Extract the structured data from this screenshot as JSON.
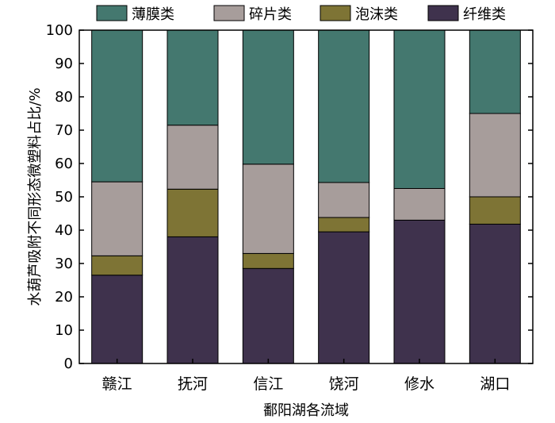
{
  "chart_data": {
    "type": "bar",
    "stacked": true,
    "categories": [
      "赣江",
      "抚河",
      "信江",
      "饶河",
      "修水",
      "湖口"
    ],
    "series": [
      {
        "name": "纤维类",
        "color": "#3f324d",
        "values": [
          26.5,
          38.0,
          28.5,
          39.5,
          43.0,
          41.8
        ]
      },
      {
        "name": "泡沫类",
        "color": "#7e7435",
        "values": [
          5.8,
          14.3,
          4.5,
          4.3,
          0,
          8.2
        ]
      },
      {
        "name": "碎片类",
        "color": "#a79d9b",
        "values": [
          22.2,
          19.2,
          26.8,
          10.5,
          9.5,
          25.0
        ]
      },
      {
        "name": "薄膜类",
        "color": "#44786f",
        "values": [
          45.5,
          28.5,
          40.2,
          45.7,
          47.5,
          25.0
        ]
      }
    ],
    "legend_order": [
      "薄膜类",
      "碎片类",
      "泡沫类",
      "纤维类"
    ],
    "xlabel": "鄱阳湖各流域",
    "ylabel": "水葫芦吸附不同形态微塑料占比/%",
    "ylim": [
      0,
      100
    ],
    "yticks": [
      0,
      10,
      20,
      30,
      40,
      50,
      60,
      70,
      80,
      90,
      100
    ],
    "grid": false,
    "legend_position": "top"
  }
}
